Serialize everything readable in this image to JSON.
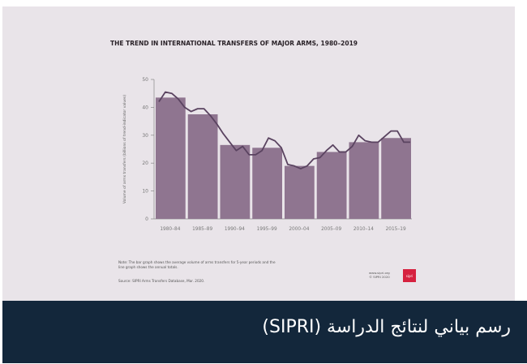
{
  "chart_data": {
    "type": "bar",
    "title": "THE TREND IN INTERNATIONAL TRANSFERS OF MAJOR ARMS, 1980–2019",
    "ylabel": "Volume of arms transfers (billions of trend-indicator values)",
    "xlabel": "",
    "ylim": [
      0,
      50
    ],
    "yticks": [
      0,
      10,
      20,
      30,
      40,
      50
    ],
    "grid": false,
    "categories": [
      "1980–84",
      "1985–89",
      "1990–94",
      "1995–99",
      "2000–04",
      "2005–09",
      "2010–14",
      "2015–19"
    ],
    "values": [
      43.5,
      37.5,
      26.5,
      25.5,
      19,
      24,
      27.5,
      29
    ],
    "line": {
      "x": [
        1980,
        1981,
        1982,
        1983,
        1984,
        1985,
        1986,
        1987,
        1988,
        1989,
        1990,
        1991,
        1992,
        1993,
        1994,
        1995,
        1996,
        1997,
        1998,
        1999,
        2000,
        2001,
        2002,
        2003,
        2004,
        2005,
        2006,
        2007,
        2008,
        2009,
        2010,
        2011,
        2012,
        2013,
        2014,
        2015,
        2016,
        2017,
        2018,
        2019
      ],
      "y": [
        42,
        45.5,
        45,
        43,
        40,
        38.5,
        39.5,
        39.5,
        37,
        34,
        30.5,
        27.5,
        24.5,
        26,
        23,
        23,
        24.5,
        29,
        28,
        25.5,
        19.5,
        19,
        18,
        19,
        21.5,
        22,
        24.5,
        26.5,
        24,
        24,
        26,
        30,
        28,
        27.5,
        27.5,
        29.5,
        31.5,
        31.5,
        27.5,
        27.5
      ]
    },
    "colors": {
      "bar": "#8f7590",
      "line": "#5a4360",
      "background": "#e9e4e9"
    }
  },
  "note": "Note: The bar graph shows the average volume of arms transfers for 5-year periods and the line graph shows the annual totals.",
  "source": "Source: SIPRI Arms Transfers Database, Mar. 2020.",
  "site": "www.sipri.org",
  "copyright": "© SIPRI 2020",
  "logo": "sipri",
  "caption": "رسم بياني لنتائج الدراسة (SIPRI)"
}
